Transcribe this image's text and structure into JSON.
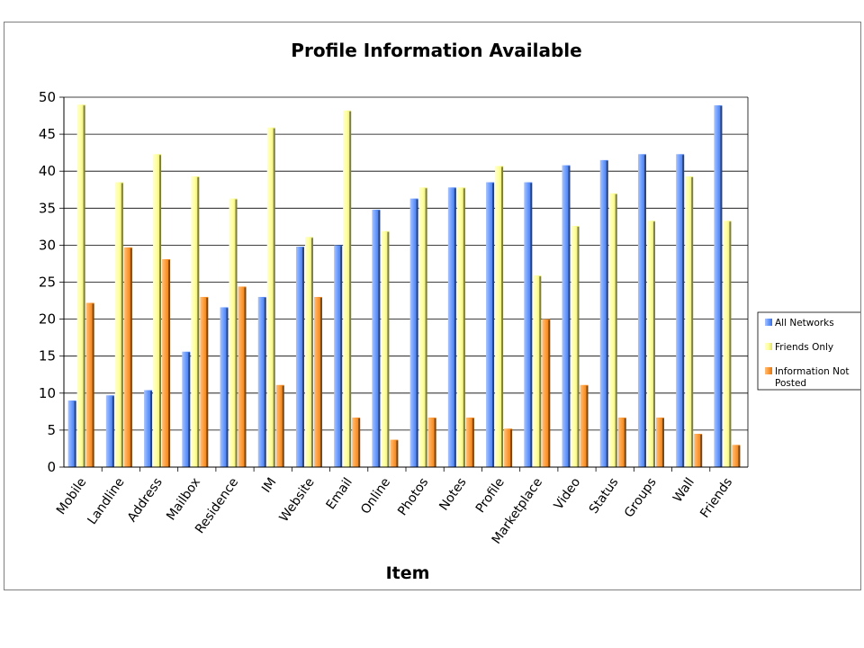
{
  "chart_data": {
    "type": "bar",
    "title": "Profile Information Available",
    "xlabel": "Item",
    "ylabel": "",
    "ylim": [
      0,
      50
    ],
    "yticks": [
      0,
      5,
      10,
      15,
      20,
      25,
      30,
      35,
      40,
      45,
      50
    ],
    "grid": true,
    "legend_position": "right",
    "categories": [
      "Mobile",
      "Landline",
      "Address",
      "Mailbox",
      "Residence",
      "IM",
      "Website",
      "Email",
      "Online",
      "Photos",
      "Notes",
      "Profile",
      "Marketplace",
      "Video",
      "Status",
      "Groups",
      "Wall",
      "Friends"
    ],
    "series": [
      {
        "name": "All Networks",
        "color": "#6699ff",
        "values": [
          9,
          9.7,
          10.4,
          15.6,
          21.6,
          23,
          29.8,
          30,
          34.8,
          36.3,
          37.8,
          38.5,
          38.5,
          40.8,
          41.5,
          42.3,
          42.3,
          48.9
        ]
      },
      {
        "name": "Friends Only",
        "color": "#ffff99",
        "values": [
          49,
          38.5,
          42.3,
          39.3,
          36.3,
          45.9,
          31.1,
          48.2,
          31.9,
          37.8,
          37.8,
          40.7,
          25.9,
          32.6,
          37,
          33.3,
          39.3,
          33.3
        ]
      },
      {
        "name": "Information Not Posted",
        "color": "#ff9933",
        "values": [
          22.2,
          29.7,
          28.1,
          23,
          24.4,
          11.1,
          23,
          6.7,
          3.7,
          6.7,
          6.7,
          5.2,
          20,
          11.1,
          6.7,
          6.7,
          4.5,
          3
        ]
      }
    ]
  }
}
